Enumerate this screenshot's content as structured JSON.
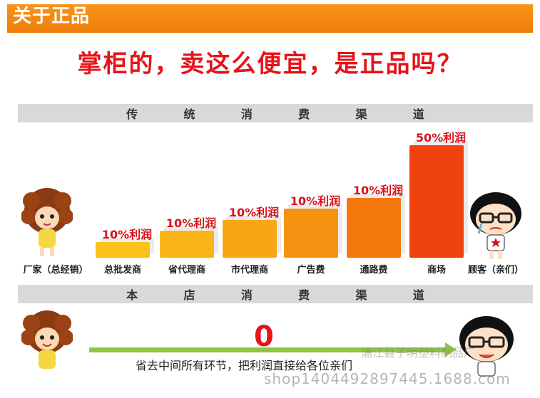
{
  "header": {
    "title": "关于正品"
  },
  "headline": "掌柜的，卖这么便宜，是正品吗？",
  "traditional": {
    "strip_chars": [
      "传",
      "统",
      "消",
      "费",
      "渠",
      "道"
    ],
    "bars": [
      {
        "category": "总批发商",
        "label": "10%利润",
        "level": 0.1,
        "color": "#fbc31a"
      },
      {
        "category": "省代理商",
        "label": "10%利润",
        "level": 0.2,
        "color": "#fbb417"
      },
      {
        "category": "市代理商",
        "label": "10%利润",
        "level": 0.3,
        "color": "#f9a615"
      },
      {
        "category": "广告费",
        "label": "10%利润",
        "level": 0.4,
        "color": "#f79212"
      },
      {
        "category": "通路费",
        "label": "10%利润",
        "level": 0.5,
        "color": "#f5780f"
      },
      {
        "category": "商场",
        "label": "50%利润",
        "level": 1.0,
        "color": "#f0420d"
      }
    ],
    "left_label": "厂家（总经销）",
    "right_label": "顾客（亲们）"
  },
  "ourstore": {
    "strip_chars": [
      "本",
      "店",
      "消",
      "费",
      "渠",
      "道"
    ],
    "zero": "0",
    "caption": "省去中间所有环节，把利润直接给各位亲们"
  },
  "watermark": "shop1404492897445.1688.com",
  "watermark2": "浦江县子明塑料制品厂"
}
